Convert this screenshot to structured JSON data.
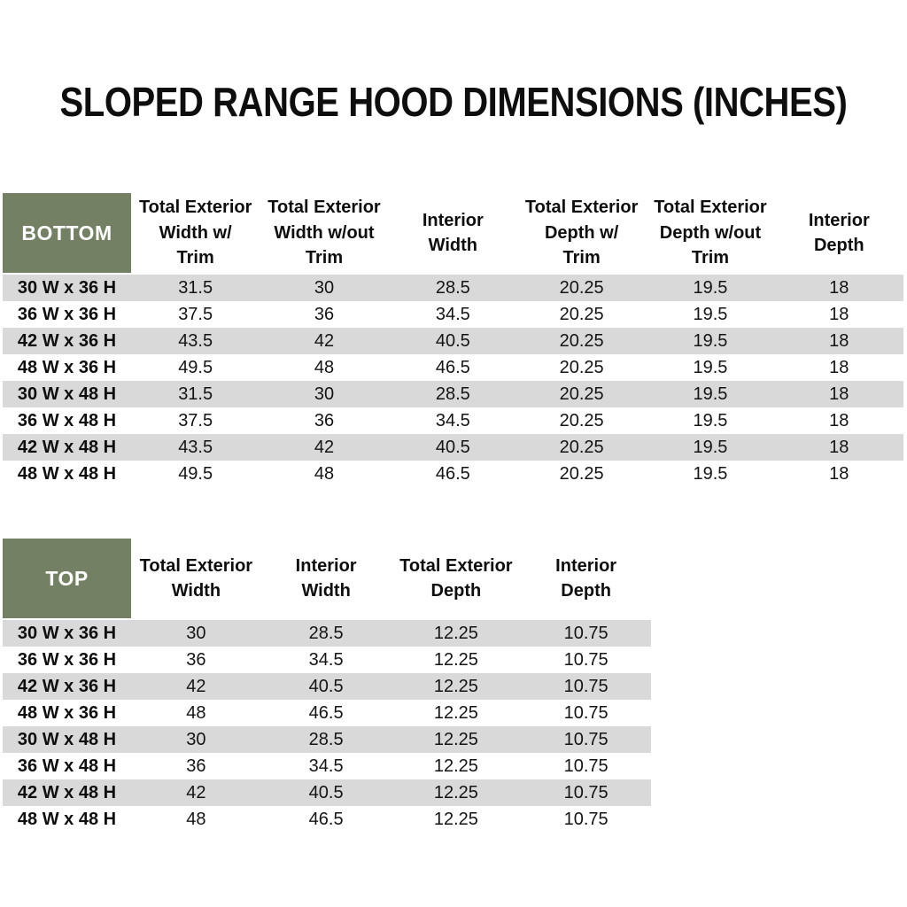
{
  "title": "SLOPED RANGE HOOD DIMENSIONS (INCHES)",
  "colors": {
    "header_green": "#738064",
    "row_stripe_gray": "#d9d9d9",
    "header_text_white": "#ffffff",
    "body_text_black": "#111111"
  },
  "bottom_table": {
    "corner_label": "BOTTOM",
    "column_headers": [
      [
        "Total Exterior",
        "Width w/",
        "Trim"
      ],
      [
        "Total Exterior",
        "Width w/out",
        "Trim"
      ],
      [
        "Interior",
        "Width"
      ],
      [
        "Total Exterior",
        "Depth w/",
        "Trim"
      ],
      [
        "Total Exterior",
        "Depth w/out",
        "Trim"
      ],
      [
        "Interior",
        "Depth"
      ]
    ],
    "rows": [
      {
        "label": "30 W x 36 H",
        "values": [
          "31.5",
          "30",
          "28.5",
          "20.25",
          "19.5",
          "18"
        ]
      },
      {
        "label": "36 W x 36 H",
        "values": [
          "37.5",
          "36",
          "34.5",
          "20.25",
          "19.5",
          "18"
        ]
      },
      {
        "label": "42 W x 36 H",
        "values": [
          "43.5",
          "42",
          "40.5",
          "20.25",
          "19.5",
          "18"
        ]
      },
      {
        "label": "48 W x 36 H",
        "values": [
          "49.5",
          "48",
          "46.5",
          "20.25",
          "19.5",
          "18"
        ]
      },
      {
        "label": "30 W x 48 H",
        "values": [
          "31.5",
          "30",
          "28.5",
          "20.25",
          "19.5",
          "18"
        ]
      },
      {
        "label": "36 W x 48 H",
        "values": [
          "37.5",
          "36",
          "34.5",
          "20.25",
          "19.5",
          "18"
        ]
      },
      {
        "label": "42 W x 48 H",
        "values": [
          "43.5",
          "42",
          "40.5",
          "20.25",
          "19.5",
          "18"
        ]
      },
      {
        "label": "48 W x 48 H",
        "values": [
          "49.5",
          "48",
          "46.5",
          "20.25",
          "19.5",
          "18"
        ]
      }
    ]
  },
  "top_table": {
    "corner_label": "TOP",
    "column_headers": [
      [
        "Total Exterior",
        "Width"
      ],
      [
        "Interior",
        "Width"
      ],
      [
        "Total Exterior",
        "Depth"
      ],
      [
        "Interior",
        "Depth"
      ]
    ],
    "rows": [
      {
        "label": "30 W x 36 H",
        "values": [
          "30",
          "28.5",
          "12.25",
          "10.75"
        ]
      },
      {
        "label": "36 W x 36 H",
        "values": [
          "36",
          "34.5",
          "12.25",
          "10.75"
        ]
      },
      {
        "label": "42 W x 36 H",
        "values": [
          "42",
          "40.5",
          "12.25",
          "10.75"
        ]
      },
      {
        "label": "48 W x 36 H",
        "values": [
          "48",
          "46.5",
          "12.25",
          "10.75"
        ]
      },
      {
        "label": "30 W x 48 H",
        "values": [
          "30",
          "28.5",
          "12.25",
          "10.75"
        ]
      },
      {
        "label": "36 W x 48 H",
        "values": [
          "36",
          "34.5",
          "12.25",
          "10.75"
        ]
      },
      {
        "label": "42 W x 48 H",
        "values": [
          "42",
          "40.5",
          "12.25",
          "10.75"
        ]
      },
      {
        "label": "48 W x 48 H",
        "values": [
          "48",
          "46.5",
          "12.25",
          "10.75"
        ]
      }
    ]
  }
}
